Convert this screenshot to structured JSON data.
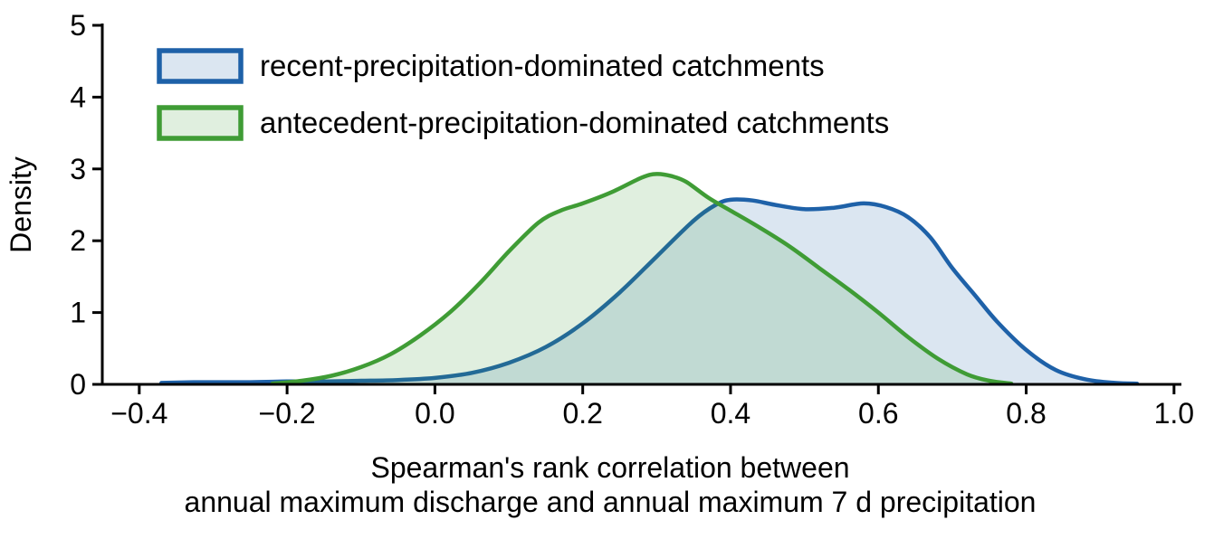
{
  "figure": {
    "background": "#ffffff"
  },
  "chart_data": {
    "type": "area",
    "subtype": "kde-density",
    "title": "",
    "xlabel_lines": [
      "Spearman's rank correlation between",
      "annual maximum discharge and annual maximum 7 d precipitation"
    ],
    "ylabel": "Density",
    "xlim": [
      -0.45,
      1.01
    ],
    "ylim": [
      0,
      5
    ],
    "grid": false,
    "legend_position": "upper-left",
    "axis_color": "#000000",
    "xticks": [
      {
        "v": -0.4,
        "label": "−0.4"
      },
      {
        "v": -0.2,
        "label": "−0.2"
      },
      {
        "v": 0.0,
        "label": "0.0"
      },
      {
        "v": 0.2,
        "label": "0.2"
      },
      {
        "v": 0.4,
        "label": "0.4"
      },
      {
        "v": 0.6,
        "label": "0.6"
      },
      {
        "v": 0.8,
        "label": "0.8"
      },
      {
        "v": 1.0,
        "label": "1.0"
      }
    ],
    "yticks": [
      {
        "v": 0,
        "label": "0"
      },
      {
        "v": 1,
        "label": "1"
      },
      {
        "v": 2,
        "label": "2"
      },
      {
        "v": 3,
        "label": "3"
      },
      {
        "v": 4,
        "label": "4"
      },
      {
        "v": 5,
        "label": "5"
      }
    ],
    "series": [
      {
        "name": "recent-precipitation-dominated catchments",
        "color": "#1e61a8",
        "fill": "#1e61a8",
        "fill_opacity": 0.16,
        "points": [
          [
            -0.37,
            0.02
          ],
          [
            -0.32,
            0.03
          ],
          [
            -0.25,
            0.03
          ],
          [
            -0.2,
            0.04
          ],
          [
            -0.15,
            0.04
          ],
          [
            -0.1,
            0.05
          ],
          [
            -0.05,
            0.06
          ],
          [
            0.0,
            0.09
          ],
          [
            0.05,
            0.16
          ],
          [
            0.1,
            0.3
          ],
          [
            0.15,
            0.52
          ],
          [
            0.2,
            0.85
          ],
          [
            0.25,
            1.28
          ],
          [
            0.3,
            1.78
          ],
          [
            0.35,
            2.28
          ],
          [
            0.38,
            2.5
          ],
          [
            0.4,
            2.57
          ],
          [
            0.43,
            2.56
          ],
          [
            0.46,
            2.5
          ],
          [
            0.5,
            2.44
          ],
          [
            0.54,
            2.46
          ],
          [
            0.58,
            2.52
          ],
          [
            0.61,
            2.47
          ],
          [
            0.64,
            2.33
          ],
          [
            0.67,
            2.05
          ],
          [
            0.7,
            1.62
          ],
          [
            0.73,
            1.25
          ],
          [
            0.76,
            0.88
          ],
          [
            0.8,
            0.48
          ],
          [
            0.84,
            0.2
          ],
          [
            0.88,
            0.07
          ],
          [
            0.92,
            0.02
          ],
          [
            0.95,
            0.01
          ]
        ]
      },
      {
        "name": "antecedent-precipitation-dominated catchments",
        "color": "#3f9c35",
        "fill": "#3f9c35",
        "fill_opacity": 0.16,
        "points": [
          [
            -0.22,
            0.01
          ],
          [
            -0.18,
            0.05
          ],
          [
            -0.14,
            0.12
          ],
          [
            -0.1,
            0.24
          ],
          [
            -0.06,
            0.42
          ],
          [
            -0.02,
            0.68
          ],
          [
            0.02,
            1.0
          ],
          [
            0.06,
            1.4
          ],
          [
            0.1,
            1.85
          ],
          [
            0.14,
            2.25
          ],
          [
            0.17,
            2.42
          ],
          [
            0.2,
            2.52
          ],
          [
            0.24,
            2.68
          ],
          [
            0.28,
            2.88
          ],
          [
            0.3,
            2.93
          ],
          [
            0.32,
            2.9
          ],
          [
            0.34,
            2.82
          ],
          [
            0.37,
            2.6
          ],
          [
            0.4,
            2.42
          ],
          [
            0.44,
            2.18
          ],
          [
            0.48,
            1.92
          ],
          [
            0.52,
            1.62
          ],
          [
            0.56,
            1.32
          ],
          [
            0.6,
            1.0
          ],
          [
            0.64,
            0.66
          ],
          [
            0.68,
            0.36
          ],
          [
            0.72,
            0.14
          ],
          [
            0.75,
            0.05
          ],
          [
            0.78,
            0.01
          ]
        ]
      }
    ]
  }
}
